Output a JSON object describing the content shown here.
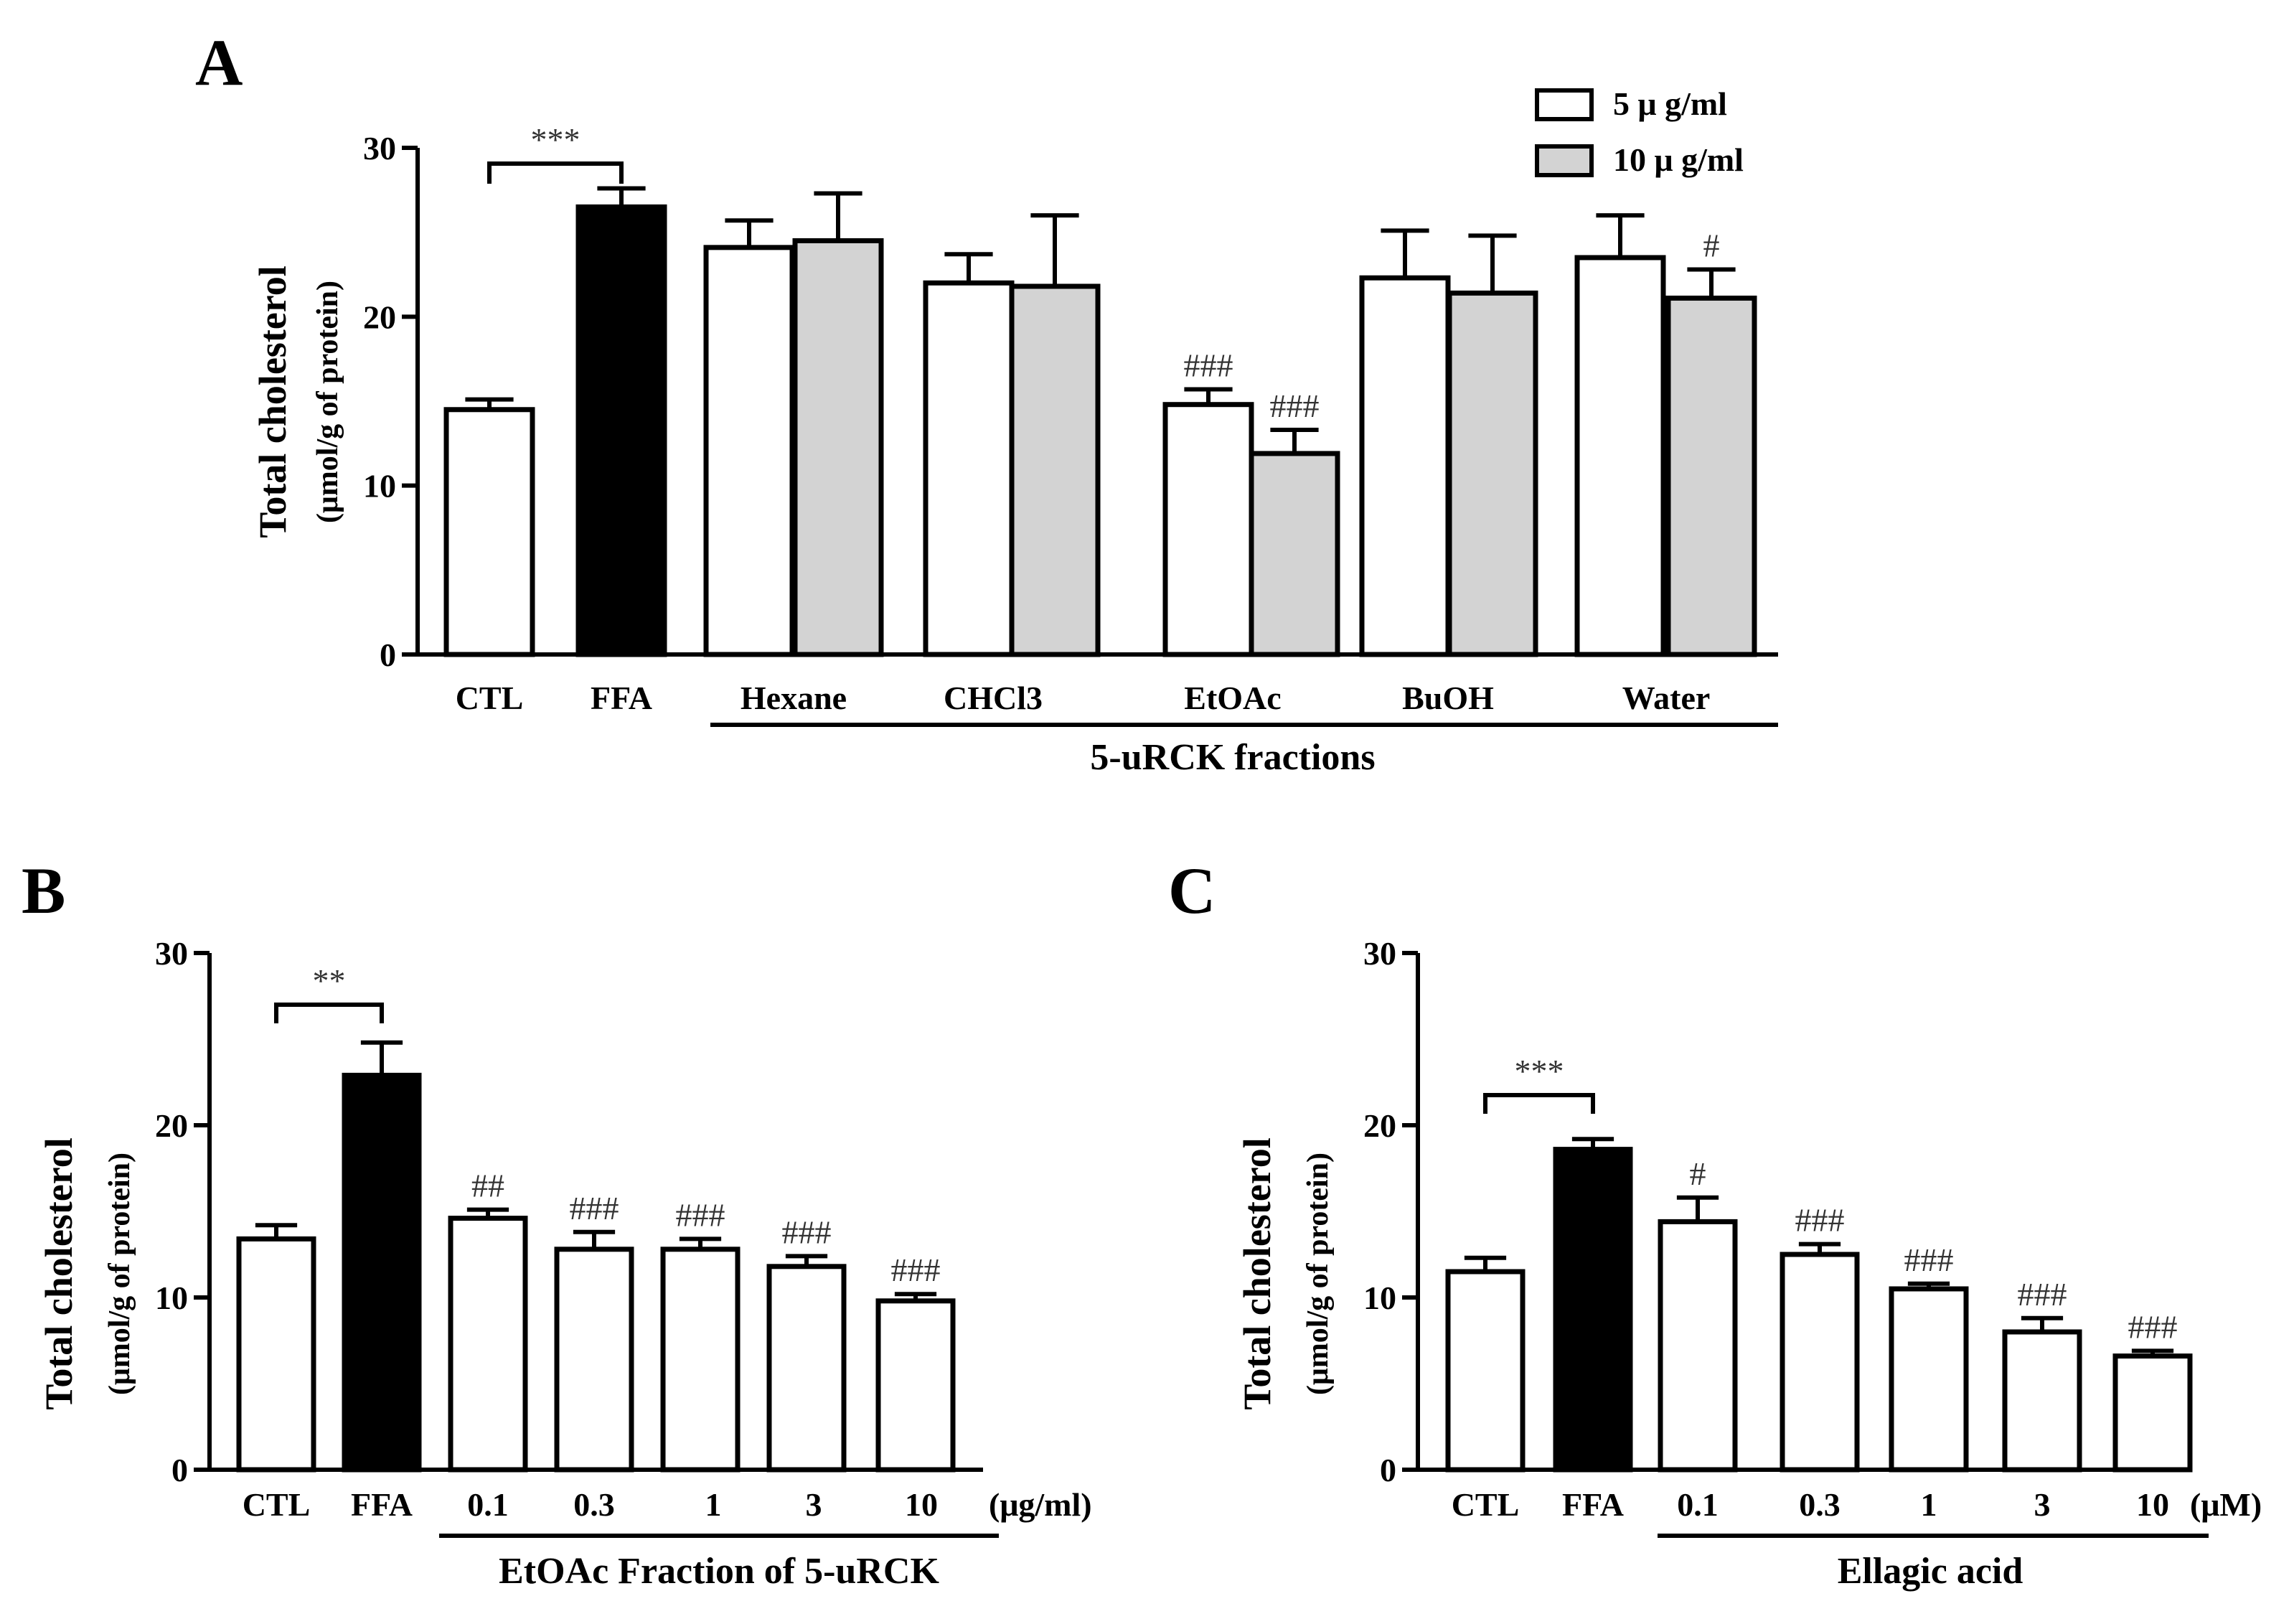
{
  "colors": {
    "white": "#ffffff",
    "black": "#000000",
    "gray": "#d3d3d3"
  },
  "chart_data": [
    {
      "id": "A",
      "type": "bar",
      "panel_label": "A",
      "ylabel": "Total cholesterol",
      "ylabel_sub": "(μmol/g of protein)",
      "ylim": [
        0,
        30
      ],
      "yticks": [
        "0",
        "10",
        "20",
        "30"
      ],
      "group_label": "5-uRCK fractions",
      "legend": [
        {
          "label": "5 μ g/ml",
          "color": "#ffffff"
        },
        {
          "label": "10 μ g/ml",
          "color": "#d3d3d3"
        }
      ],
      "categories": [
        "CTL",
        "FFA",
        "Hexane",
        "CHCl3",
        "EtOAc",
        "BuOH",
        "Water"
      ],
      "bars": [
        {
          "category": "CTL",
          "value": 14.5,
          "error": 0.6,
          "color": "#ffffff",
          "annotation": ""
        },
        {
          "category": "FFA",
          "value": 26.5,
          "error": 1.1,
          "color": "#000000",
          "annotation": ""
        },
        {
          "category": "Hexane",
          "series": "5 μ g/ml",
          "value": 24.1,
          "error": 1.6,
          "color": "#ffffff",
          "annotation": ""
        },
        {
          "category": "Hexane",
          "series": "10 μ g/ml",
          "value": 24.5,
          "error": 2.8,
          "color": "#d3d3d3",
          "annotation": ""
        },
        {
          "category": "CHCl3",
          "series": "5 μ g/ml",
          "value": 22.0,
          "error": 1.7,
          "color": "#ffffff",
          "annotation": ""
        },
        {
          "category": "CHCl3",
          "series": "10 μ g/ml",
          "value": 21.8,
          "error": 4.2,
          "color": "#d3d3d3",
          "annotation": ""
        },
        {
          "category": "EtOAc",
          "series": "5 μ g/ml",
          "value": 14.8,
          "error": 0.9,
          "color": "#ffffff",
          "annotation": "###"
        },
        {
          "category": "EtOAc",
          "series": "10 μ g/ml",
          "value": 11.9,
          "error": 1.4,
          "color": "#d3d3d3",
          "annotation": "###"
        },
        {
          "category": "BuOH",
          "series": "5 μ g/ml",
          "value": 22.3,
          "error": 2.8,
          "color": "#ffffff",
          "annotation": ""
        },
        {
          "category": "BuOH",
          "series": "10 μ g/ml",
          "value": 21.4,
          "error": 3.4,
          "color": "#d3d3d3",
          "annotation": ""
        },
        {
          "category": "Water",
          "series": "5 μ g/ml",
          "value": 23.5,
          "error": 2.5,
          "color": "#ffffff",
          "annotation": ""
        },
        {
          "category": "Water",
          "series": "10 μ g/ml",
          "value": 21.1,
          "error": 1.7,
          "color": "#d3d3d3",
          "annotation": "#"
        }
      ],
      "significance": "***"
    },
    {
      "id": "B",
      "type": "bar",
      "panel_label": "B",
      "ylabel": "Total cholesterol",
      "ylabel_sub": "(μmol/g of protein)",
      "ylim": [
        0,
        30
      ],
      "yticks": [
        "0",
        "10",
        "20",
        "30"
      ],
      "group_label": "EtOAc Fraction of 5-uRCK",
      "unit_label": "(μg/ml)",
      "categories": [
        "CTL",
        "FFA",
        "0.1",
        "0.3",
        "1",
        "3",
        "10"
      ],
      "bars": [
        {
          "category": "CTL",
          "value": 13.4,
          "error": 0.8,
          "color": "#ffffff",
          "annotation": ""
        },
        {
          "category": "FFA",
          "value": 22.9,
          "error": 1.9,
          "color": "#000000",
          "annotation": ""
        },
        {
          "category": "0.1",
          "value": 14.6,
          "error": 0.5,
          "color": "#ffffff",
          "annotation": "##"
        },
        {
          "category": "0.3",
          "value": 12.8,
          "error": 1.0,
          "color": "#ffffff",
          "annotation": "###"
        },
        {
          "category": "1",
          "value": 12.8,
          "error": 0.6,
          "color": "#ffffff",
          "annotation": "###"
        },
        {
          "category": "3",
          "value": 11.8,
          "error": 0.6,
          "color": "#ffffff",
          "annotation": "###"
        },
        {
          "category": "10",
          "value": 9.8,
          "error": 0.4,
          "color": "#ffffff",
          "annotation": "###"
        }
      ],
      "significance": "**"
    },
    {
      "id": "C",
      "type": "bar",
      "panel_label": "C",
      "ylabel": "Total cholesterol",
      "ylabel_sub": "(μmol/g of protein)",
      "ylim": [
        0,
        30
      ],
      "yticks": [
        "0",
        "10",
        "20",
        "30"
      ],
      "group_label": "Ellagic acid",
      "unit_label": "(μM)",
      "categories": [
        "CTL",
        "FFA",
        "0.1",
        "0.3",
        "1",
        "3",
        "10"
      ],
      "bars": [
        {
          "category": "CTL",
          "value": 11.5,
          "error": 0.8,
          "color": "#ffffff",
          "annotation": ""
        },
        {
          "category": "FFA",
          "value": 18.6,
          "error": 0.6,
          "color": "#000000",
          "annotation": ""
        },
        {
          "category": "0.1",
          "value": 14.4,
          "error": 1.4,
          "color": "#ffffff",
          "annotation": "#"
        },
        {
          "category": "0.3",
          "value": 12.5,
          "error": 0.6,
          "color": "#ffffff",
          "annotation": "###"
        },
        {
          "category": "1",
          "value": 10.5,
          "error": 0.3,
          "color": "#ffffff",
          "annotation": "###"
        },
        {
          "category": "3",
          "value": 8.0,
          "error": 0.8,
          "color": "#ffffff",
          "annotation": "###"
        },
        {
          "category": "10",
          "value": 6.6,
          "error": 0.3,
          "color": "#ffffff",
          "annotation": "###"
        }
      ],
      "significance": "***"
    }
  ]
}
